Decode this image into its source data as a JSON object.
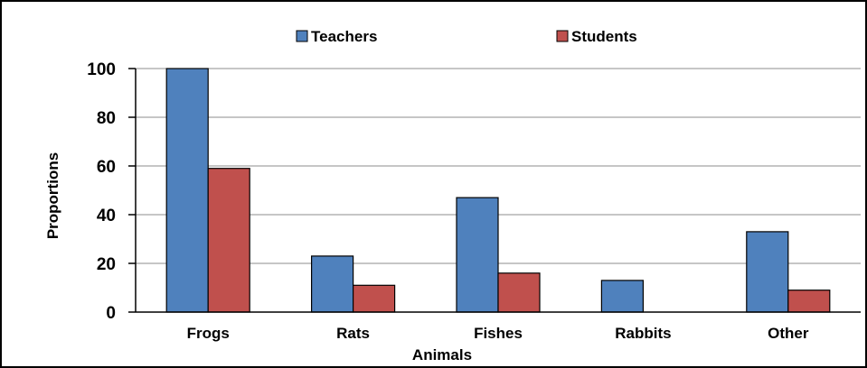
{
  "chart_data": {
    "type": "bar",
    "title": "",
    "xlabel": "Animals",
    "ylabel": "Proportions",
    "ylim": [
      0,
      100
    ],
    "yticks": [
      0,
      20,
      40,
      60,
      80,
      100
    ],
    "grid": true,
    "legend_position": "top",
    "categories": [
      "Frogs",
      "Rats",
      "Fishes",
      "Rabbits",
      "Other"
    ],
    "series": [
      {
        "name": "Teachers",
        "color": "#4f81bd",
        "values": [
          100,
          23,
          47,
          13,
          33
        ]
      },
      {
        "name": "Students",
        "color": "#c0504d",
        "values": [
          59,
          11,
          16,
          0,
          9
        ]
      }
    ]
  }
}
